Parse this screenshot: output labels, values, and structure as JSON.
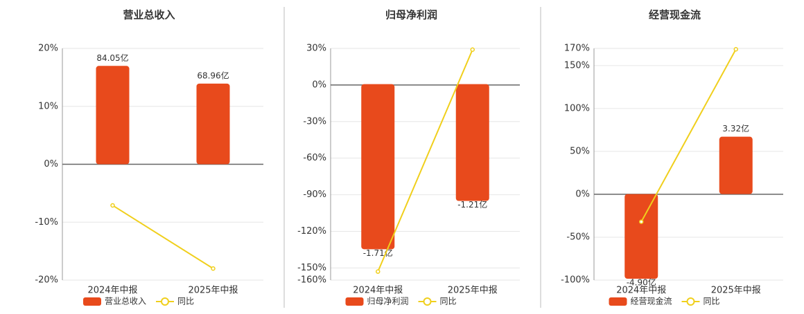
{
  "chart_data": [
    {
      "type": "bar",
      "title": "营业总收入",
      "categories": [
        "2024年中报",
        "2025年中报"
      ],
      "series": [
        {
          "name": "营业总收入",
          "color": "#e84a1c",
          "axis": "y2",
          "values": [
            84.05,
            68.96
          ],
          "value_labels": [
            "84.05亿",
            "68.96亿"
          ]
        },
        {
          "name": "同比",
          "type": "line",
          "color": "#f0cf1c",
          "values": [
            -7.1,
            -18
          ]
        }
      ],
      "ylim": [
        -20,
        20
      ],
      "yticks": [
        {
          "value": 20,
          "label": "20%"
        },
        {
          "value": 10,
          "label": "10%"
        },
        {
          "value": 0,
          "label": "0%"
        },
        {
          "value": -10,
          "label": "-10%"
        },
        {
          "value": -20,
          "label": "-20%"
        }
      ],
      "y2lim": [
        -99,
        99
      ],
      "grid": true
    },
    {
      "type": "bar",
      "title": "归母净利润",
      "categories": [
        "2024年中报",
        "2025年中报"
      ],
      "series": [
        {
          "name": "归母净利润",
          "color": "#e84a1c",
          "axis": "y2",
          "values": [
            -1.71,
            -1.21
          ],
          "value_labels": [
            "-1.71亿",
            "-1.21亿"
          ]
        },
        {
          "name": "同比",
          "type": "line",
          "color": "#f0cf1c",
          "values": [
            -153,
            29
          ]
        }
      ],
      "ylim": [
        -160,
        30
      ],
      "yticks": [
        {
          "value": 30,
          "label": "30%"
        },
        {
          "value": 0,
          "label": "0%"
        },
        {
          "value": -30,
          "label": "-30%"
        },
        {
          "value": -60,
          "label": "-60%"
        },
        {
          "value": -90,
          "label": "-90%"
        },
        {
          "value": -120,
          "label": "-120%"
        },
        {
          "value": -150,
          "label": "-150%"
        },
        {
          "value": -160,
          "label": "-160%"
        }
      ],
      "y2lim": [
        -2.03,
        0.37
      ],
      "grid": true
    },
    {
      "type": "bar",
      "title": "经营现金流",
      "categories": [
        "2024年中报",
        "2025年中报"
      ],
      "series": [
        {
          "name": "经营现金流",
          "color": "#e84a1c",
          "axis": "y2",
          "values": [
            -4.9,
            3.32
          ],
          "value_labels": [
            "-4.90亿",
            "3.32亿"
          ]
        },
        {
          "name": "同比",
          "type": "line",
          "color": "#f0cf1c",
          "values": [
            -32,
            169
          ]
        }
      ],
      "ylim": [
        -100,
        170
      ],
      "yticks": [
        {
          "value": 170,
          "label": "170%"
        },
        {
          "value": 150,
          "label": "150%"
        },
        {
          "value": 100,
          "label": "100%"
        },
        {
          "value": 50,
          "label": "50%"
        },
        {
          "value": 0,
          "label": "0%"
        },
        {
          "value": -50,
          "label": "-50%"
        },
        {
          "value": -100,
          "label": "-100%"
        }
      ],
      "y2lim": [
        -4.98,
        8.43
      ],
      "grid": true
    }
  ]
}
